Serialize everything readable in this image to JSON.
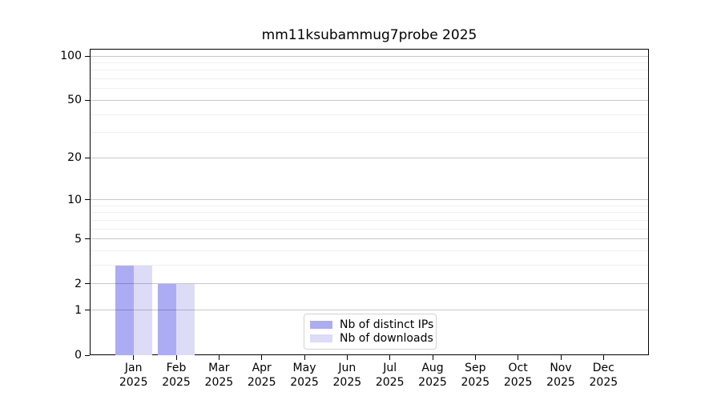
{
  "chart_data": {
    "type": "bar",
    "title": "mm11ksubammug7probe 2025",
    "categories": [
      "Jan 2025",
      "Feb 2025",
      "Mar 2025",
      "Apr 2025",
      "May 2025",
      "Jun 2025",
      "Jul 2025",
      "Aug 2025",
      "Sep 2025",
      "Oct 2025",
      "Nov 2025",
      "Dec 2025"
    ],
    "x_tick_months": [
      "Jan",
      "Feb",
      "Mar",
      "Apr",
      "May",
      "Jun",
      "Jul",
      "Aug",
      "Sep",
      "Oct",
      "Nov",
      "Dec"
    ],
    "x_tick_year": "2025",
    "series": [
      {
        "name": "Nb of distinct IPs",
        "color": "#acacf4",
        "values": [
          3,
          2,
          0,
          0,
          0,
          0,
          0,
          0,
          0,
          0,
          0,
          0
        ]
      },
      {
        "name": "Nb of downloads",
        "color": "#dcdcf8",
        "values": [
          3,
          2,
          0,
          0,
          0,
          0,
          0,
          0,
          0,
          0,
          0,
          0
        ]
      }
    ],
    "y_axis": {
      "scale": "log1p",
      "major_ticks": [
        0,
        1,
        2,
        5,
        10,
        20,
        50,
        100
      ],
      "minor_gridlines": [
        3,
        4,
        6,
        7,
        8,
        9,
        30,
        40,
        60,
        70,
        80,
        90
      ],
      "max": 112
    },
    "grid": {
      "major_color": "#c7c7c7",
      "minor_color": "#f0f0f0",
      "enabled": true
    },
    "axis_color": "#000000",
    "legend": {
      "position": "bottom-center"
    },
    "xlabel": "",
    "ylabel": ""
  }
}
